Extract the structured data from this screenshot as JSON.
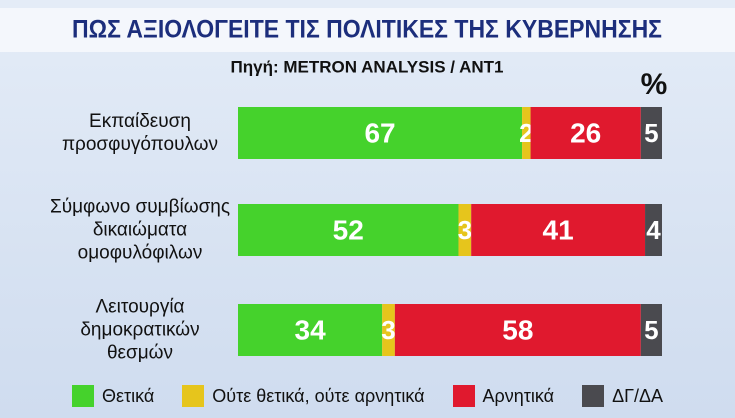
{
  "chart_data": {
    "type": "bar",
    "orientation": "horizontal",
    "stacked": true,
    "title": "ΠΩΣ ΑΞΙΟΛΟΓΕΙΤΕ ΤΙΣ ΠΟΛΙΤΙΚΕΣ ΤΗΣ ΚΥΒΕΡΝΗΣΗΣ",
    "subtitle": "Πηγή: METRON ANALYSIS / ANT1",
    "unit": "%",
    "categories": [
      "Εκπαίδευση\nπροσφυγόπουλων",
      "Σύμφωνο συμβίωσης\nδικαιώματα\nομοφυλόφιλων",
      "Λειτουργία\nδημοκρατικών\nθεσμών"
    ],
    "series": [
      {
        "name": "Θετικά",
        "color": "#45d22c",
        "values": [
          67,
          52,
          34
        ]
      },
      {
        "name": "Ούτε θετικά, ούτε αρνητικά",
        "color": "#e6c51c",
        "values": [
          2,
          3,
          3
        ]
      },
      {
        "name": "Αρνητικά",
        "color": "#e0192e",
        "values": [
          26,
          41,
          58
        ]
      },
      {
        "name": "ΔΓ/ΔΑ",
        "color": "#4a4a4f",
        "values": [
          5,
          4,
          5
        ]
      }
    ]
  }
}
